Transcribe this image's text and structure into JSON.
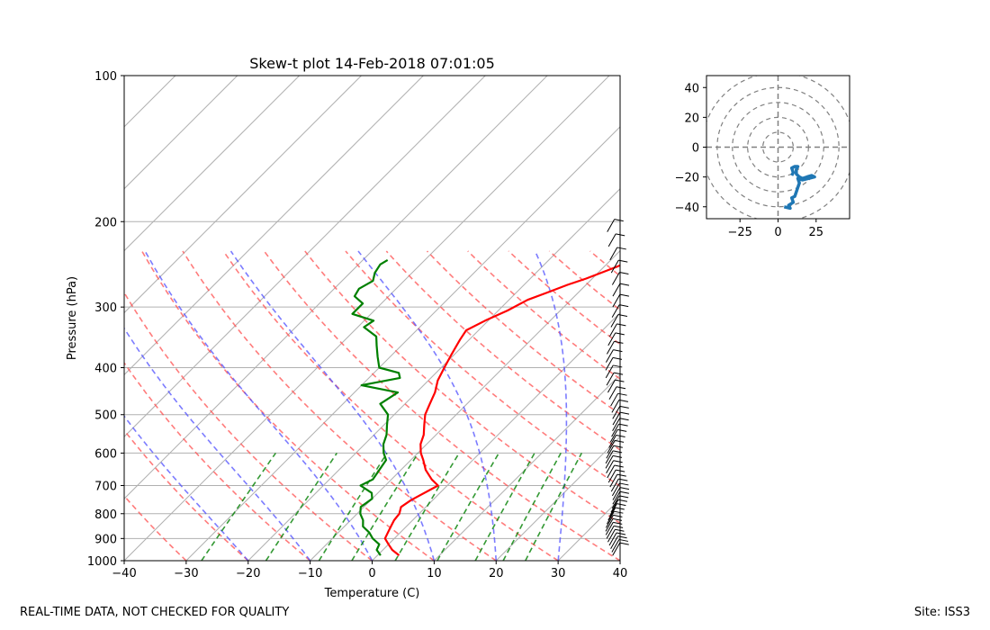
{
  "chart_data": [
    {
      "type": "line",
      "title": "Skew-t plot 14-Feb-2018 07:01:05",
      "xlabel": "Temperature (C)",
      "ylabel": "Pressure (hPa)",
      "xlim": [
        -40,
        40
      ],
      "ylim": [
        1000,
        100
      ],
      "y_scale": "log",
      "x_ticks": [
        "−40",
        "−30",
        "−20",
        "−10",
        "0",
        "10",
        "20",
        "30",
        "40"
      ],
      "y_ticks": [
        "100",
        "200",
        "300",
        "400",
        "500",
        "600",
        "700",
        "800",
        "900",
        "1000"
      ],
      "grid": true,
      "series": [
        {
          "role": "temperature",
          "color": "#ff0000",
          "points": [
            [
              3.5,
              975
            ],
            [
              1.5,
              950
            ],
            [
              0,
              925
            ],
            [
              -1.5,
              900
            ],
            [
              -2,
              875
            ],
            [
              -2.5,
              850
            ],
            [
              -3,
              825
            ],
            [
              -3.2,
              800
            ],
            [
              -4,
              775
            ],
            [
              -3.5,
              750
            ],
            [
              -1.5,
              700
            ],
            [
              -3.5,
              680
            ],
            [
              -6,
              650
            ],
            [
              -8,
              620
            ],
            [
              -9.5,
              600
            ],
            [
              -11,
              575
            ],
            [
              -12,
              550
            ],
            [
              -13.5,
              525
            ],
            [
              -15,
              500
            ],
            [
              -16,
              475
            ],
            [
              -17,
              450
            ],
            [
              -18.5,
              425
            ],
            [
              -19.5,
              400
            ],
            [
              -20.5,
              375
            ],
            [
              -21.5,
              350
            ],
            [
              -22,
              335
            ],
            [
              -20.5,
              320
            ],
            [
              -18.5,
              305
            ],
            [
              -17,
              290
            ],
            [
              -15,
              280
            ],
            [
              -13,
              270
            ],
            [
              -11,
              262
            ],
            [
              -9.5,
              255
            ],
            [
              -8,
              248
            ],
            [
              -7,
              243
            ]
          ]
        },
        {
          "role": "dewpoint",
          "color": "#008000",
          "points": [
            [
              0.5,
              975
            ],
            [
              -1,
              950
            ],
            [
              -1.5,
              925
            ],
            [
              -3.5,
              900
            ],
            [
              -5,
              875
            ],
            [
              -7,
              850
            ],
            [
              -8,
              825
            ],
            [
              -9.5,
              800
            ],
            [
              -10.5,
              775
            ],
            [
              -10,
              745
            ],
            [
              -11,
              725
            ],
            [
              -14,
              700
            ],
            [
              -13,
              680
            ],
            [
              -13.5,
              650
            ],
            [
              -14,
              620
            ],
            [
              -15.5,
              600
            ],
            [
              -17,
              575
            ],
            [
              -18,
              550
            ],
            [
              -19.5,
              525
            ],
            [
              -21,
              500
            ],
            [
              -24,
              475
            ],
            [
              -23,
              450
            ],
            [
              -30,
              435
            ],
            [
              -25,
              420
            ],
            [
              -26,
              410
            ],
            [
              -30,
              400
            ],
            [
              -32,
              380
            ],
            [
              -34,
              360
            ],
            [
              -35.5,
              345
            ],
            [
              -39,
              330
            ],
            [
              -38.5,
              320
            ],
            [
              -43,
              310
            ],
            [
              -43,
              295
            ],
            [
              -45.5,
              285
            ],
            [
              -46,
              275
            ],
            [
              -45,
              265
            ],
            [
              -46,
              255
            ],
            [
              -46.5,
              245
            ],
            [
              -46,
              240
            ]
          ]
        }
      ]
    },
    {
      "type": "line",
      "title": "",
      "xlabel": "",
      "ylabel": "",
      "xlim": [
        -47,
        47
      ],
      "ylim": [
        -48,
        48
      ],
      "x_ticks": [
        "−25",
        "0",
        "25"
      ],
      "y_ticks": [
        "40",
        "20",
        "0",
        "−20",
        "−40"
      ],
      "rings": [
        10,
        20,
        30,
        40,
        50
      ],
      "series": [
        {
          "role": "hodograph",
          "color": "#1f77b4",
          "points": [
            [
              4,
              -40
            ],
            [
              8,
              -41
            ],
            [
              7,
              -39
            ],
            [
              10,
              -37
            ],
            [
              9,
              -34
            ],
            [
              11,
              -33
            ],
            [
              12,
              -30
            ],
            [
              13,
              -27
            ],
            [
              14,
              -24
            ],
            [
              13,
              -21
            ],
            [
              16,
              -22
            ],
            [
              20,
              -21
            ],
            [
              24,
              -20
            ],
            [
              22,
              -19
            ],
            [
              19,
              -20
            ],
            [
              16,
              -21
            ],
            [
              14,
              -20
            ],
            [
              13,
              -19
            ],
            [
              12,
              -18
            ],
            [
              12,
              -15
            ],
            [
              13,
              -13
            ],
            [
              11,
              -13
            ],
            [
              9,
              -14
            ],
            [
              10,
              -17
            ],
            [
              9,
              -19
            ]
          ]
        }
      ]
    }
  ],
  "footer": {
    "left_note": "REAL-TIME DATA, NOT CHECKED FOR QUALITY",
    "site": "Site: ISS3"
  }
}
